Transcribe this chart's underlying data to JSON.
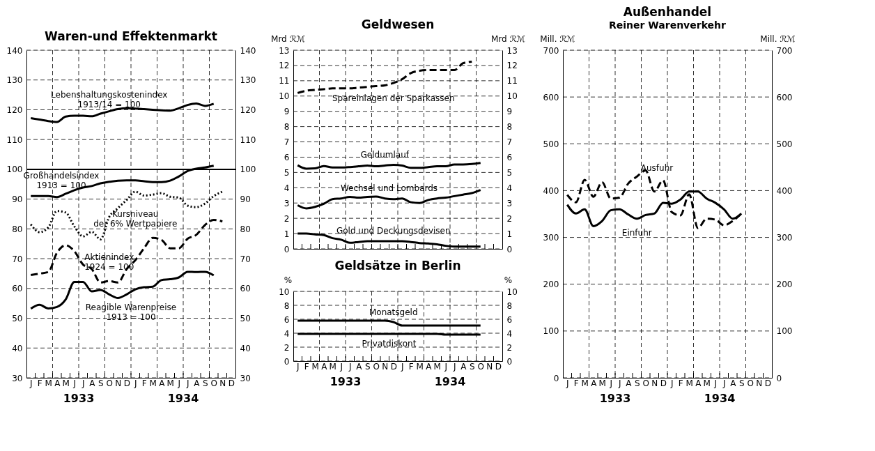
{
  "chart_data": [
    {
      "type": "line",
      "title": "Waren-und Effektenmarkt",
      "categories": [
        "J",
        "F",
        "M",
        "A",
        "M",
        "J",
        "J",
        "A",
        "S",
        "O",
        "N",
        "D",
        "J",
        "F",
        "M",
        "A",
        "M",
        "J",
        "J",
        "A",
        "S",
        "O",
        "N",
        "D"
      ],
      "series": [
        {
          "name": "Lebenshaltungskostenindex\n1913/14 = 100",
          "color": "#000000",
          "line_style": "solid",
          "values": [
            117.2,
            116.7,
            116.2,
            115.9,
            117.7,
            118,
            118,
            117.8,
            118.7,
            119.5,
            120.2,
            120.5,
            120.4,
            120.2,
            120.0,
            119.8,
            119.7,
            120.5,
            121.6,
            122.1,
            121.3,
            122,
            null,
            null
          ]
        },
        {
          "name": "Großhandelsindex\n1913 = 100",
          "color": "#000000",
          "line_style": "solid",
          "values": [
            91,
            91,
            91,
            90.7,
            91.8,
            93,
            93.9,
            94.4,
            95.3,
            95.8,
            96.2,
            96.3,
            96.3,
            96,
            95.7,
            95.7,
            96.2,
            97.6,
            99.4,
            100.2,
            100.6,
            101.2,
            null,
            null
          ]
        },
        {
          "name": "Kursniveau\nder 6% Wertpapiere",
          "color": "#000000",
          "line_style": "dotted",
          "values": [
            81.5,
            78.9,
            80.5,
            86,
            85.5,
            80.8,
            77.5,
            79,
            76.5,
            84,
            87,
            89.7,
            92.5,
            91.2,
            91.5,
            92,
            90.8,
            90.5,
            87.8,
            87.3,
            88.5,
            91,
            92.5,
            null
          ]
        },
        {
          "name": "Aktienindex\n1924 = 100",
          "color": "#000000",
          "line_style": "dashed",
          "values": [
            64.5,
            65,
            65.5,
            72,
            74.5,
            72.5,
            68,
            66.5,
            62,
            62.5,
            62,
            66.5,
            69.5,
            73.5,
            77,
            76.3,
            73.5,
            73.5,
            76.7,
            78,
            81.3,
            83,
            82.5,
            null
          ]
        },
        {
          "name": "Reagible Warenpreise\n1913 = 100",
          "color": "#000000",
          "line_style": "solid",
          "values": [
            53.2,
            54.5,
            53.3,
            53.8,
            56.3,
            62.2,
            62.2,
            59,
            59.5,
            58,
            56.8,
            58,
            59.7,
            60.4,
            60.6,
            62.8,
            63.1,
            63.7,
            65.6,
            65.5,
            65.6,
            64.4,
            null,
            null
          ]
        }
      ],
      "ylim": [
        30,
        140
      ],
      "yticks": [
        30,
        40,
        50,
        60,
        70,
        80,
        90,
        100,
        110,
        120,
        130,
        140
      ],
      "y2lim": [
        30,
        140
      ],
      "y2ticks": [
        30,
        40,
        50,
        60,
        70,
        80,
        90,
        100,
        110,
        120,
        130,
        140
      ],
      "ref_lines": [
        {
          "axis": "y",
          "value": 100
        }
      ],
      "annotations": [
        "1933",
        "1934"
      ],
      "grid": true,
      "legend": false
    },
    {
      "type": "line",
      "title": "Geldwesen",
      "ylabel": "Mrd ℛℳ",
      "y2label": "Mrd ℛℳ",
      "categories": [
        null,
        null,
        null,
        null,
        null,
        null,
        null,
        null,
        null,
        null,
        null,
        null,
        null,
        null,
        null,
        null,
        null,
        null,
        null,
        null,
        null,
        null,
        null,
        null
      ],
      "series": [
        {
          "name": "Spareinlagen der Sparkassen",
          "color": "#000000",
          "line_style": "dashed",
          "values": [
            10.2,
            10.35,
            10.4,
            10.45,
            10.5,
            10.5,
            10.5,
            10.55,
            10.6,
            10.65,
            10.7,
            10.85,
            11.1,
            11.5,
            11.65,
            11.7,
            11.7,
            11.7,
            11.7,
            12.15,
            12.25,
            null,
            null,
            null
          ]
        },
        {
          "name": "Geldumlauf",
          "color": "#000000",
          "line_style": "solid",
          "values": [
            5.47,
            5.25,
            5.27,
            5.42,
            5.33,
            5.32,
            5.35,
            5.4,
            5.45,
            5.4,
            5.45,
            5.5,
            5.45,
            5.3,
            5.3,
            5.35,
            5.4,
            5.4,
            5.52,
            5.52,
            5.55,
            5.62,
            null,
            null
          ]
        },
        {
          "name": "Wechsel und Lombards",
          "color": "#000000",
          "line_style": "solid",
          "values": [
            2.85,
            2.65,
            2.75,
            2.95,
            3.25,
            3.3,
            3.4,
            3.35,
            3.4,
            3.42,
            3.3,
            3.25,
            3.3,
            3.05,
            3.0,
            3.2,
            3.3,
            3.35,
            3.45,
            3.55,
            3.65,
            3.85,
            null,
            null
          ]
        },
        {
          "name": "Gold und Deckungsdevisen",
          "color": "#000000",
          "line_style": "solid",
          "values": [
            1.0,
            1.0,
            0.95,
            0.9,
            0.7,
            0.6,
            0.4,
            0.45,
            0.5,
            0.5,
            0.5,
            0.5,
            0.5,
            0.45,
            0.38,
            0.35,
            0.3,
            0.2,
            0.15,
            0.15,
            0.15,
            0.15,
            null,
            null
          ]
        }
      ],
      "ylim": [
        0,
        13
      ],
      "yticks": [
        0,
        1,
        2,
        3,
        4,
        5,
        6,
        7,
        8,
        9,
        10,
        11,
        12,
        13
      ],
      "y2lim": [
        0,
        13
      ],
      "y2ticks": [
        0,
        1,
        2,
        3,
        4,
        5,
        6,
        7,
        8,
        9,
        10,
        11,
        12,
        13
      ],
      "tick_labels": "y",
      "grid": true,
      "legend": false
    },
    {
      "type": "line",
      "title": "Geldsätze in Berlin",
      "ylabel": "%",
      "y2label": "%",
      "categories": [
        "J",
        "F",
        "M",
        "A",
        "M",
        "J",
        "J",
        "A",
        "S",
        "O",
        "N",
        "D",
        "J",
        "F",
        "M",
        "A",
        "M",
        "J",
        "J",
        "A",
        "S",
        "O",
        "N",
        "D"
      ],
      "series": [
        {
          "name": "Monatsgeld",
          "color": "#000000",
          "line_style": "solid",
          "values": [
            5.8,
            5.8,
            5.8,
            5.8,
            5.8,
            5.8,
            5.8,
            5.8,
            5.8,
            5.8,
            5.8,
            5.6,
            5.1,
            5.1,
            5.1,
            5.1,
            5.1,
            5.1,
            5.1,
            5.1,
            5.1,
            5.1,
            null,
            null
          ]
        },
        {
          "name": "Privatdiskont",
          "color": "#000000",
          "line_style": "solid",
          "values": [
            3.9,
            3.9,
            3.9,
            3.9,
            3.9,
            3.9,
            3.9,
            3.9,
            3.9,
            3.9,
            3.9,
            3.9,
            3.9,
            3.9,
            3.9,
            3.9,
            3.9,
            3.8,
            3.8,
            3.8,
            3.8,
            3.8,
            null,
            null
          ]
        }
      ],
      "ylim": [
        0,
        10
      ],
      "yticks": [
        0,
        2,
        4,
        6,
        8,
        10
      ],
      "y2lim": [
        0,
        10
      ],
      "y2ticks": [
        0,
        2,
        4,
        6,
        8,
        10
      ],
      "annotations": [
        "1933",
        "1934"
      ],
      "grid": true,
      "legend": false
    },
    {
      "type": "line",
      "title": "Außenhandel",
      "subtitle": "Reiner Warenverkehr",
      "ylabel": "Mill. ℛℳ",
      "y2label": "Mill. ℛℳ",
      "categories": [
        "J",
        "F",
        "M",
        "A",
        "M",
        "J",
        "J",
        "A",
        "S",
        "O",
        "N",
        "D",
        "J",
        "F",
        "M",
        "A",
        "M",
        "J",
        "J",
        "A",
        "S",
        "O",
        "N",
        "D"
      ],
      "series": [
        {
          "name": "Ausfuhr",
          "color": "#000000",
          "line_style": "dashed",
          "values": [
            391,
            375,
            423,
            387,
            418,
            383,
            385,
            415,
            430,
            443,
            398,
            422,
            354,
            347,
            392,
            320,
            340,
            338,
            326,
            335,
            351,
            null,
            null,
            null
          ]
        },
        {
          "name": "Einfuhr",
          "color": "#000000",
          "line_style": "solid",
          "values": [
            370,
            351,
            360,
            324,
            335,
            358,
            360,
            349,
            340,
            348,
            351,
            374,
            372,
            381,
            398,
            398,
            383,
            374,
            360,
            340,
            351,
            null,
            null,
            null
          ]
        }
      ],
      "ylim": [
        0,
        700
      ],
      "yticks": [
        0,
        100,
        200,
        300,
        400,
        500,
        600,
        700
      ],
      "y2lim": [
        0,
        700
      ],
      "y2ticks": [
        0,
        100,
        200,
        300,
        400,
        500,
        600,
        700
      ],
      "annotations": [
        "1933",
        "1934"
      ],
      "grid": true,
      "legend": false
    }
  ]
}
